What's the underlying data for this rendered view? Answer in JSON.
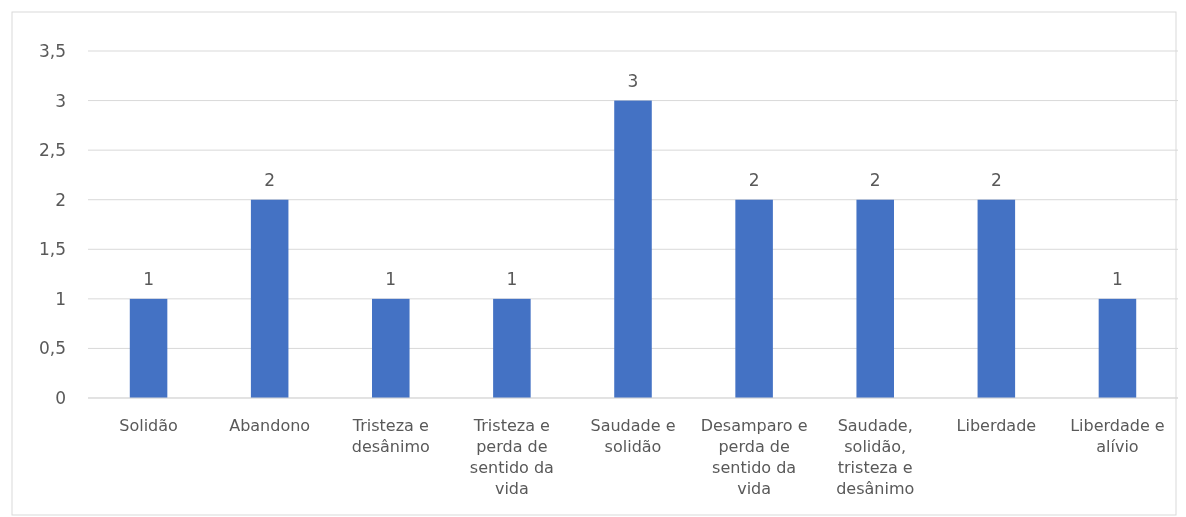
{
  "chart_data": {
    "type": "bar",
    "categories": [
      "Solidão",
      "Abandono",
      "Tristeza e desânimo",
      "Tristeza e perda de sentido da vida",
      "Saudade e solidão",
      "Desamparo e perda de sentido da vida",
      "Saudade, solidão, tristeza e desânimo",
      "Liberdade",
      "Liberdade e alívio"
    ],
    "values": [
      1,
      2,
      1,
      1,
      3,
      2,
      2,
      2,
      1
    ],
    "color": "#4472c4",
    "ylim": [
      0,
      3.5
    ],
    "yticks": [
      {
        "value": 0,
        "label": "0"
      },
      {
        "value": 0.5,
        "label": "0,5"
      },
      {
        "value": 1,
        "label": "1"
      },
      {
        "value": 1.5,
        "label": "1,5"
      },
      {
        "value": 2,
        "label": "2"
      },
      {
        "value": 2.5,
        "label": "2,5"
      },
      {
        "value": 3,
        "label": "3"
      },
      {
        "value": 3.5,
        "label": "3,5"
      }
    ],
    "grid": "y",
    "data_labels": true
  }
}
